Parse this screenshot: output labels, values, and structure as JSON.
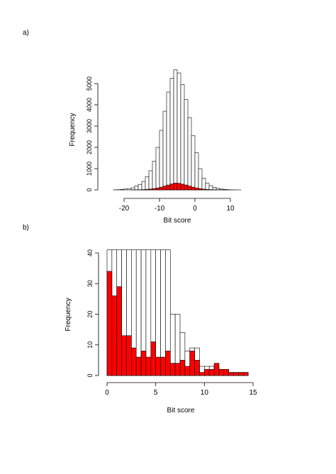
{
  "chart_data": [
    {
      "panel_label": "a)",
      "type": "bar",
      "xlabel": "Bit score",
      "ylabel": "Frequency",
      "xlim": [
        -25,
        15
      ],
      "ylim": [
        0,
        5600
      ],
      "x_ticks": [
        -20,
        -10,
        0,
        10
      ],
      "y_ticks": [
        0,
        1000,
        2000,
        3000,
        4000,
        5000
      ],
      "bin_width": 1,
      "bin_starts": [
        -25,
        -24,
        -23,
        -22,
        -21,
        -20,
        -19,
        -18,
        -17,
        -16,
        -15,
        -14,
        -13,
        -12,
        -11,
        -10,
        -9,
        -8,
        -7,
        -6,
        -5,
        -4,
        -3,
        -2,
        -1,
        0,
        1,
        2,
        3,
        4,
        5,
        6,
        7,
        8,
        9,
        10,
        11,
        12,
        13,
        14
      ],
      "series": [
        {
          "name": "",
          "color": "#ffffff",
          "values": [
            0,
            0,
            5,
            10,
            20,
            40,
            60,
            100,
            190,
            260,
            400,
            620,
            900,
            1350,
            2000,
            2800,
            3700,
            4600,
            5250,
            5650,
            5500,
            4950,
            4250,
            3400,
            2550,
            1750,
            1000,
            550,
            310,
            200,
            120,
            70,
            40,
            20,
            10,
            5,
            2,
            1,
            0,
            0
          ]
        },
        {
          "name": "",
          "color": "#ff0000",
          "values": [
            0,
            0,
            0,
            0,
            0,
            0,
            0,
            3,
            5,
            8,
            15,
            25,
            40,
            60,
            90,
            130,
            180,
            230,
            280,
            320,
            310,
            270,
            230,
            180,
            130,
            90,
            60,
            35,
            20,
            12,
            8,
            5,
            3,
            2,
            1,
            0,
            0,
            0,
            0,
            0
          ]
        }
      ]
    },
    {
      "panel_label": "b)",
      "type": "bar",
      "xlabel": "Bit score",
      "ylabel": "Frequency",
      "xlim": [
        0,
        15
      ],
      "ylim": [
        0,
        40
      ],
      "x_ticks": [
        0,
        5,
        10,
        15
      ],
      "y_ticks": [
        0,
        10,
        20,
        30,
        40
      ],
      "bin_width": 0.5,
      "bin_starts": [
        0,
        0.5,
        1,
        1.5,
        2,
        2.5,
        3,
        3.5,
        4,
        4.5,
        5,
        5.5,
        6,
        6.5,
        7,
        7.5,
        8,
        8.5,
        9,
        9.5,
        10,
        10.5,
        11,
        11.5,
        12,
        12.5,
        13,
        13.5,
        14
      ],
      "series": [
        {
          "name": "",
          "color": "#ffffff",
          "values": [
            41,
            41,
            41,
            41,
            41,
            41,
            41,
            41,
            41,
            41,
            41,
            41,
            41,
            20,
            20,
            14,
            8,
            9,
            9,
            3,
            3,
            3,
            3,
            2,
            2,
            1,
            1,
            1,
            1
          ]
        },
        {
          "name": "",
          "color": "#ff0000",
          "values": [
            34,
            26,
            29,
            13,
            13,
            9,
            6,
            8,
            6,
            11,
            6,
            6,
            8,
            4,
            4,
            5,
            3,
            8,
            5,
            1,
            2,
            2,
            4,
            2,
            2,
            1,
            1,
            1,
            1
          ]
        }
      ]
    }
  ]
}
